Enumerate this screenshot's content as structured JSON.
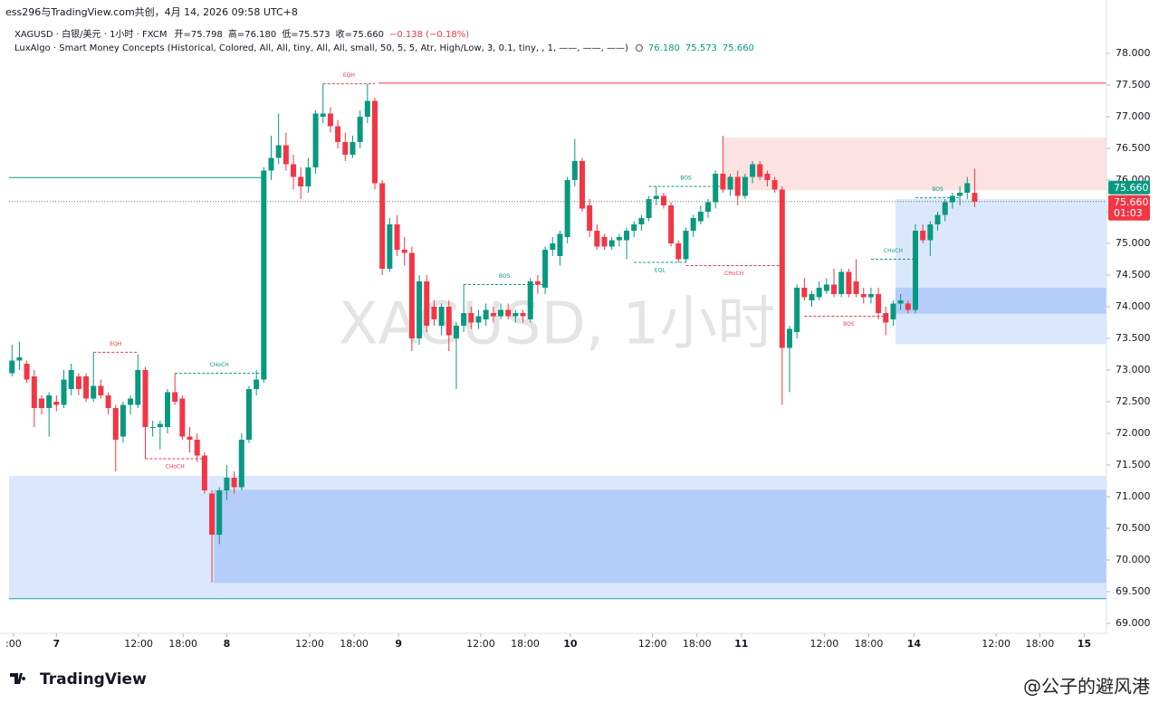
{
  "chart_data": {
    "type": "candlestick",
    "header": "ess296与TradingView.com共创，4月 14, 2026 09:58 UTC+8",
    "watermark": "XAGUSD, 1小时",
    "brand": "TradingView",
    "credit": "@公子的避风港",
    "legend": {
      "symbol": "XAGUSD · 白银/美元 · 1小时 · FXCM",
      "ohlc": [
        "开=75.798",
        "高=76.180",
        "低=75.573",
        "收=75.660",
        "−0.138 (−0.18%)"
      ],
      "indicator": "LuxAlgo · Smart Money Concepts (Historical, Colored, All, All, tiny, All, All, small, 50, 5, 5, Atr, High/Low, 3, 0.1, tiny, , 1, ——, ——, ——)",
      "indicator_values": [
        "76.180",
        "75.573",
        "75.660"
      ]
    },
    "up_color": "#089981",
    "down_color": "#f23645",
    "xlim": [
      -0.4,
      147.8
    ],
    "ylim": [
      68.843,
      78.243
    ],
    "xticks": [
      {
        "value": 0.2,
        "label": ":00"
      },
      {
        "value": 6.0,
        "label": "7"
      },
      {
        "value": 17.1,
        "label": "12:00"
      },
      {
        "value": 23.1,
        "label": "18:00"
      },
      {
        "value": 29.0,
        "label": "8"
      },
      {
        "value": 40.2,
        "label": "12:00"
      },
      {
        "value": 46.2,
        "label": "18:00"
      },
      {
        "value": 52.2,
        "label": "9"
      },
      {
        "value": 63.3,
        "label": "12:00"
      },
      {
        "value": 69.3,
        "label": "18:00"
      },
      {
        "value": 75.4,
        "label": "10"
      },
      {
        "value": 86.5,
        "label": "12:00"
      },
      {
        "value": 92.5,
        "label": "18:00"
      },
      {
        "value": 98.5,
        "label": "11"
      },
      {
        "value": 109.7,
        "label": "12:00"
      },
      {
        "value": 115.7,
        "label": "18:00"
      },
      {
        "value": 121.8,
        "label": "14"
      },
      {
        "value": 132.9,
        "label": "12:00"
      },
      {
        "value": 138.8,
        "label": "18:00"
      },
      {
        "value": 144.8,
        "label": "15"
      }
    ],
    "yticks": [
      {
        "value": 69,
        "label": "69.000"
      },
      {
        "value": 69.5,
        "label": "69.500"
      },
      {
        "value": 70,
        "label": "70.000"
      },
      {
        "value": 70.5,
        "label": "70.500"
      },
      {
        "value": 71,
        "label": "71.000"
      },
      {
        "value": 71.5,
        "label": "71.500"
      },
      {
        "value": 72,
        "label": "72.000"
      },
      {
        "value": 72.5,
        "label": "72.500"
      },
      {
        "value": 73,
        "label": "73.000"
      },
      {
        "value": 73.5,
        "label": "73.500"
      },
      {
        "value": 74,
        "label": "74.000"
      },
      {
        "value": 74.5,
        "label": "74.500"
      },
      {
        "value": 75,
        "label": "75.000"
      },
      {
        "value": 75.5,
        "label": "75.500"
      },
      {
        "value": 76,
        "label": "76.000"
      },
      {
        "value": 76.5,
        "label": "76.500"
      },
      {
        "value": 77,
        "label": "77.000"
      },
      {
        "value": 77.5,
        "label": "77.500"
      },
      {
        "value": 78,
        "label": "78.000"
      }
    ],
    "last_price": {
      "value": 75.66,
      "label": "75.660",
      "countdown": "01:03"
    },
    "ohlc": [
      [
        72.95,
        73.4,
        72.9,
        73.15
      ],
      [
        73.15,
        73.45,
        73.0,
        73.2
      ],
      [
        73.1,
        73.15,
        72.8,
        72.85
      ],
      [
        72.9,
        73.0,
        72.1,
        72.4
      ],
      [
        72.55,
        72.6,
        72.3,
        72.4
      ],
      [
        72.4,
        72.65,
        71.95,
        72.6
      ],
      [
        72.5,
        72.6,
        72.35,
        72.45
      ],
      [
        72.45,
        73.0,
        72.4,
        72.85
      ],
      [
        72.7,
        73.1,
        72.6,
        73.0
      ],
      [
        72.9,
        72.95,
        72.6,
        72.7
      ],
      [
        72.9,
        72.95,
        72.5,
        72.55
      ],
      [
        72.55,
        73.28,
        72.5,
        72.75
      ],
      [
        72.75,
        72.85,
        72.55,
        72.6
      ],
      [
        72.6,
        72.65,
        72.3,
        72.4
      ],
      [
        72.4,
        72.45,
        71.4,
        71.9
      ],
      [
        71.95,
        72.5,
        71.85,
        72.45
      ],
      [
        72.45,
        72.6,
        72.3,
        72.55
      ],
      [
        72.45,
        73.25,
        72.4,
        73.0
      ],
      [
        73.0,
        73.05,
        71.6,
        72.1
      ],
      [
        72.1,
        72.2,
        71.95,
        72.1
      ],
      [
        72.1,
        72.2,
        71.75,
        72.15
      ],
      [
        72.1,
        72.7,
        72.0,
        72.65
      ],
      [
        72.65,
        72.95,
        72.45,
        72.5
      ],
      [
        72.55,
        72.6,
        71.9,
        71.95
      ],
      [
        71.95,
        72.1,
        71.7,
        71.9
      ],
      [
        71.9,
        72.0,
        71.55,
        71.65
      ],
      [
        71.65,
        71.7,
        71.05,
        71.1
      ],
      [
        71.05,
        71.1,
        69.65,
        70.4
      ],
      [
        70.4,
        71.15,
        70.25,
        71.1
      ],
      [
        71.1,
        71.5,
        70.95,
        71.3
      ],
      [
        71.3,
        71.4,
        71.05,
        71.15
      ],
      [
        71.15,
        72.0,
        71.1,
        71.9
      ],
      [
        71.9,
        72.75,
        71.85,
        72.7
      ],
      [
        72.7,
        73.0,
        72.6,
        72.85
      ],
      [
        72.85,
        76.2,
        72.8,
        76.15
      ],
      [
        76.15,
        76.7,
        76.0,
        76.35
      ],
      [
        76.35,
        77.05,
        76.25,
        76.55
      ],
      [
        76.55,
        76.75,
        76.15,
        76.25
      ],
      [
        76.25,
        76.4,
        75.85,
        76.05
      ],
      [
        76.05,
        76.2,
        75.7,
        75.9
      ],
      [
        75.9,
        76.35,
        75.8,
        76.2
      ],
      [
        76.2,
        77.1,
        76.1,
        77.05
      ],
      [
        77.0,
        77.52,
        76.9,
        77.05
      ],
      [
        77.05,
        77.15,
        76.75,
        76.85
      ],
      [
        76.85,
        76.95,
        76.5,
        76.6
      ],
      [
        76.6,
        76.75,
        76.3,
        76.4
      ],
      [
        76.4,
        76.7,
        76.35,
        76.6
      ],
      [
        76.6,
        77.1,
        76.5,
        77.0
      ],
      [
        77.0,
        77.52,
        76.9,
        77.25
      ],
      [
        77.25,
        77.3,
        75.85,
        75.95
      ],
      [
        75.95,
        76.0,
        74.5,
        74.6
      ],
      [
        74.6,
        75.4,
        74.55,
        75.3
      ],
      [
        75.3,
        75.45,
        74.8,
        74.9
      ],
      [
        74.9,
        75.1,
        74.65,
        74.85
      ],
      [
        74.85,
        74.95,
        73.3,
        73.5
      ],
      [
        73.5,
        74.5,
        73.4,
        74.4
      ],
      [
        74.4,
        74.5,
        73.6,
        73.7
      ],
      [
        74.0,
        74.1,
        73.7,
        73.8
      ],
      [
        73.7,
        74.05,
        73.55,
        74.0
      ],
      [
        74.0,
        74.1,
        73.3,
        73.55
      ],
      [
        73.5,
        73.75,
        72.7,
        73.7
      ],
      [
        73.7,
        74.35,
        73.6,
        73.9
      ],
      [
        73.9,
        74.0,
        73.65,
        73.75
      ],
      [
        73.75,
        73.95,
        73.65,
        73.85
      ],
      [
        73.8,
        74.05,
        73.7,
        73.95
      ],
      [
        73.9,
        74.0,
        73.75,
        73.85
      ],
      [
        73.85,
        74.05,
        73.8,
        73.95
      ],
      [
        73.95,
        74.05,
        73.8,
        73.85
      ],
      [
        73.85,
        73.95,
        73.75,
        73.9
      ],
      [
        73.9,
        73.95,
        73.75,
        73.85
      ],
      [
        73.8,
        74.45,
        73.75,
        74.4
      ],
      [
        74.4,
        74.5,
        74.2,
        74.35
      ],
      [
        74.3,
        74.95,
        74.2,
        74.9
      ],
      [
        74.9,
        75.1,
        74.8,
        75.0
      ],
      [
        74.8,
        75.2,
        74.65,
        75.15
      ],
      [
        75.1,
        76.05,
        75.0,
        76.0
      ],
      [
        76.0,
        76.65,
        75.9,
        76.3
      ],
      [
        76.3,
        76.35,
        75.5,
        75.55
      ],
      [
        75.6,
        75.7,
        75.1,
        75.2
      ],
      [
        75.2,
        75.3,
        74.9,
        74.95
      ],
      [
        75.1,
        75.15,
        74.9,
        74.95
      ],
      [
        74.95,
        75.1,
        74.9,
        75.05
      ],
      [
        75.05,
        75.15,
        74.95,
        75.1
      ],
      [
        75.05,
        75.25,
        74.75,
        75.2
      ],
      [
        75.2,
        75.35,
        75.1,
        75.3
      ],
      [
        75.3,
        75.45,
        75.2,
        75.4
      ],
      [
        75.4,
        75.75,
        75.35,
        75.7
      ],
      [
        75.7,
        75.9,
        75.6,
        75.75
      ],
      [
        75.75,
        75.8,
        75.55,
        75.6
      ],
      [
        75.6,
        75.65,
        74.95,
        75.0
      ],
      [
        75.0,
        75.05,
        74.7,
        74.75
      ],
      [
        74.75,
        75.25,
        74.7,
        75.2
      ],
      [
        75.2,
        75.45,
        75.1,
        75.4
      ],
      [
        75.35,
        75.6,
        75.3,
        75.5
      ],
      [
        75.5,
        75.7,
        75.4,
        75.65
      ],
      [
        75.65,
        76.15,
        75.55,
        76.1
      ],
      [
        76.1,
        76.7,
        75.8,
        75.85
      ],
      [
        75.85,
        76.1,
        75.75,
        76.05
      ],
      [
        76.05,
        76.15,
        75.6,
        75.75
      ],
      [
        75.75,
        76.1,
        75.7,
        76.05
      ],
      [
        76.05,
        76.3,
        75.95,
        76.25
      ],
      [
        76.25,
        76.3,
        76.0,
        76.05
      ],
      [
        76.1,
        76.15,
        75.9,
        76.0
      ],
      [
        76.0,
        76.05,
        75.8,
        75.85
      ],
      [
        75.85,
        75.9,
        72.45,
        73.35
      ],
      [
        73.35,
        73.7,
        72.65,
        73.65
      ],
      [
        73.6,
        74.35,
        73.5,
        74.3
      ],
      [
        74.3,
        74.45,
        74.1,
        74.15
      ],
      [
        74.1,
        74.25,
        74.0,
        74.2
      ],
      [
        74.15,
        74.4,
        74.1,
        74.3
      ],
      [
        74.25,
        74.45,
        74.2,
        74.35
      ],
      [
        74.35,
        74.6,
        74.15,
        74.2
      ],
      [
        74.2,
        74.6,
        74.15,
        74.55
      ],
      [
        74.55,
        74.6,
        74.15,
        74.2
      ],
      [
        74.4,
        74.75,
        74.15,
        74.2
      ],
      [
        74.2,
        74.3,
        74.05,
        74.15
      ],
      [
        74.15,
        74.3,
        74.05,
        74.2
      ],
      [
        74.2,
        74.3,
        73.8,
        73.9
      ],
      [
        73.9,
        74.0,
        73.55,
        73.75
      ],
      [
        73.8,
        74.1,
        73.7,
        74.05
      ],
      [
        74.05,
        74.2,
        73.95,
        74.1
      ],
      [
        74.05,
        74.1,
        73.9,
        73.95
      ],
      [
        73.95,
        75.3,
        73.9,
        75.2
      ],
      [
        75.2,
        75.3,
        75.0,
        75.05
      ],
      [
        75.05,
        75.35,
        74.8,
        75.3
      ],
      [
        75.3,
        75.5,
        75.2,
        75.45
      ],
      [
        75.45,
        75.7,
        75.35,
        75.65
      ],
      [
        75.65,
        75.8,
        75.55,
        75.75
      ],
      [
        75.75,
        75.9,
        75.6,
        75.8
      ],
      [
        75.8,
        76.05,
        75.7,
        75.95
      ],
      [
        75.798,
        76.18,
        75.573,
        75.66
      ]
    ],
    "zones": [
      {
        "from": -0.4,
        "top": 71.33,
        "bottom": 69.39,
        "color": "#dbe7fc"
      },
      {
        "from": 27.3,
        "top": 71.11,
        "bottom": 69.64,
        "color": "#b4cdfa"
      },
      {
        "from": 96,
        "top": 76.67,
        "bottom": 75.84,
        "color": "#fde2e2"
      },
      {
        "from": 119.3,
        "top": 75.7,
        "bottom": 73.41,
        "color": "#dbe7fc"
      },
      {
        "from": 119.3,
        "top": 74.3,
        "bottom": 73.89,
        "color": "#b4cdfa"
      }
    ],
    "levels": [
      {
        "price": 76.04,
        "from": -0.4,
        "to": 34,
        "color": "#089981"
      },
      {
        "price": 77.53,
        "from": 49.5,
        "to": 147.8,
        "color": "#f23645"
      },
      {
        "price": 69.39,
        "from": -0.4,
        "to": 147.8,
        "color": "#26a69a"
      }
    ],
    "structures": [
      {
        "label": "EQH",
        "price": 73.28,
        "from": 11,
        "to": 17,
        "color": "#f23645",
        "side": "above"
      },
      {
        "label": "CHoCH",
        "price": 71.6,
        "from": 18,
        "to": 26,
        "color": "#f23645",
        "side": "below"
      },
      {
        "label": "CHoCH",
        "price": 72.95,
        "from": 22,
        "to": 34,
        "color": "#089981",
        "side": "above"
      },
      {
        "label": "EQH",
        "price": 77.52,
        "from": 42,
        "to": 49,
        "color": "#f23645",
        "side": "above"
      },
      {
        "label": "BOS",
        "price": 74.35,
        "from": 61,
        "to": 72,
        "color": "#089981",
        "side": "above"
      },
      {
        "label": "EQL",
        "price": 74.7,
        "from": 84,
        "to": 91,
        "color": "#089981",
        "side": "below"
      },
      {
        "label": "BOS",
        "price": 75.9,
        "from": 86,
        "to": 96,
        "color": "#089981",
        "side": "above"
      },
      {
        "label": "CHoCH",
        "price": 74.65,
        "from": 91,
        "to": 104,
        "color": "#f23645",
        "side": "below"
      },
      {
        "label": "BOS",
        "price": 73.85,
        "from": 107,
        "to": 119,
        "color": "#f23645",
        "side": "below"
      },
      {
        "label": "CHoCH",
        "price": 74.75,
        "from": 116,
        "to": 122,
        "color": "#089981",
        "side": "above"
      },
      {
        "label": "BOS",
        "price": 75.72,
        "from": 122,
        "to": 128,
        "color": "#089981",
        "side": "above"
      }
    ]
  }
}
